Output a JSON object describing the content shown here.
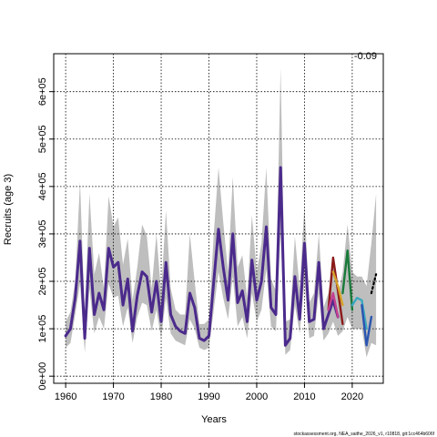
{
  "chart_data": {
    "type": "line",
    "xlabel": "Years",
    "ylabel": "Recruits (age 3)",
    "corner_value": "-0.09",
    "footer": "stockassessment.org, NEA_saithe_2026_v1, r10818, git:1cc464b606f",
    "xlim": [
      1957.5,
      2026.5
    ],
    "ylim": [
      -15000,
      680000
    ],
    "xticks": [
      1960,
      1970,
      1980,
      1990,
      2000,
      2010,
      2020
    ],
    "yticks": [
      0,
      100000,
      200000,
      300000,
      400000,
      500000,
      600000
    ],
    "ytick_labels": [
      "0e+00",
      "1e+05",
      "2e+05",
      "3e+05",
      "4e+05",
      "5e+05",
      "6e+05"
    ],
    "grid": true,
    "x": [
      1960,
      1961,
      1962,
      1963,
      1964,
      1965,
      1966,
      1967,
      1968,
      1969,
      1970,
      1971,
      1972,
      1973,
      1974,
      1975,
      1976,
      1977,
      1978,
      1979,
      1980,
      1981,
      1982,
      1983,
      1984,
      1985,
      1986,
      1987,
      1988,
      1989,
      1990,
      1991,
      1992,
      1993,
      1994,
      1995,
      1996,
      1997,
      1998,
      1999,
      2000,
      2001,
      2002,
      2003,
      2004,
      2005,
      2006,
      2007,
      2008,
      2009,
      2010,
      2011,
      2012,
      2013,
      2014,
      2015,
      2016,
      2017,
      2018,
      2019,
      2020,
      2021,
      2022,
      2023,
      2024,
      2025
    ],
    "series": [
      {
        "color": "#4b2a8c",
        "values": [
          85000,
          100000,
          165000,
          285000,
          80000,
          270000,
          130000,
          175000,
          140000,
          270000,
          230000,
          240000,
          150000,
          205000,
          95000,
          170000,
          220000,
          210000,
          135000,
          200000,
          115000,
          240000,
          130000,
          105000,
          95000,
          90000,
          175000,
          145000,
          80000,
          75000,
          85000,
          200000,
          310000,
          230000,
          160000,
          300000,
          155000,
          180000,
          115000,
          245000,
          160000,
          200000,
          315000,
          145000,
          130000,
          440000,
          65000,
          80000,
          210000,
          120000,
          280000,
          115000,
          120000,
          240000,
          100000,
          130000,
          160000,
          125000,
          null,
          null,
          null,
          null,
          null,
          null,
          null,
          null
        ]
      },
      {
        "color": "#8b1a1a",
        "values": [
          null,
          null,
          null,
          null,
          null,
          null,
          null,
          null,
          null,
          null,
          null,
          null,
          null,
          null,
          null,
          null,
          null,
          null,
          null,
          null,
          null,
          null,
          null,
          null,
          null,
          null,
          null,
          null,
          null,
          null,
          null,
          null,
          null,
          null,
          null,
          null,
          null,
          null,
          null,
          null,
          null,
          null,
          null,
          null,
          null,
          null,
          null,
          null,
          null,
          null,
          null,
          null,
          null,
          null,
          null,
          140000,
          250000,
          180000,
          110000,
          null,
          null,
          null,
          null,
          null,
          null,
          null
        ]
      },
      {
        "color": "#c4408f",
        "values": [
          null,
          null,
          null,
          null,
          null,
          null,
          null,
          null,
          null,
          null,
          null,
          null,
          null,
          null,
          null,
          null,
          null,
          null,
          null,
          null,
          null,
          null,
          null,
          null,
          null,
          null,
          null,
          null,
          null,
          null,
          null,
          null,
          null,
          null,
          null,
          null,
          null,
          null,
          null,
          null,
          null,
          null,
          null,
          null,
          null,
          null,
          null,
          null,
          null,
          null,
          null,
          null,
          null,
          null,
          null,
          140000,
          175000,
          125000,
          null,
          null,
          null,
          null,
          null,
          null,
          null,
          null
        ]
      },
      {
        "color": "#d6a32a",
        "values": [
          null,
          null,
          null,
          null,
          null,
          null,
          null,
          null,
          null,
          null,
          null,
          null,
          null,
          null,
          null,
          null,
          null,
          null,
          null,
          null,
          null,
          null,
          null,
          null,
          null,
          null,
          null,
          null,
          null,
          null,
          null,
          null,
          null,
          null,
          null,
          null,
          null,
          null,
          null,
          null,
          null,
          null,
          null,
          null,
          null,
          null,
          null,
          null,
          null,
          null,
          null,
          null,
          null,
          null,
          null,
          null,
          220000,
          190000,
          150000,
          null,
          null,
          null,
          null,
          null,
          null,
          null
        ]
      },
      {
        "color": "#1a7a3a",
        "values": [
          null,
          null,
          null,
          null,
          null,
          null,
          null,
          null,
          null,
          null,
          null,
          null,
          null,
          null,
          null,
          null,
          null,
          null,
          null,
          null,
          null,
          null,
          null,
          null,
          null,
          null,
          null,
          null,
          null,
          null,
          null,
          null,
          null,
          null,
          null,
          null,
          null,
          null,
          null,
          null,
          null,
          null,
          null,
          null,
          null,
          null,
          null,
          null,
          null,
          null,
          null,
          null,
          null,
          null,
          null,
          null,
          null,
          null,
          175000,
          265000,
          140000,
          null,
          null,
          null,
          null,
          null
        ]
      },
      {
        "color": "#3aa8c0",
        "values": [
          null,
          null,
          null,
          null,
          null,
          null,
          null,
          null,
          null,
          null,
          null,
          null,
          null,
          null,
          null,
          null,
          null,
          null,
          null,
          null,
          null,
          null,
          null,
          null,
          null,
          null,
          null,
          null,
          null,
          null,
          null,
          null,
          null,
          null,
          null,
          null,
          null,
          null,
          null,
          null,
          null,
          null,
          null,
          null,
          null,
          null,
          null,
          null,
          null,
          null,
          null,
          null,
          null,
          null,
          null,
          null,
          null,
          null,
          null,
          null,
          150000,
          165000,
          160000,
          100000,
          null,
          null
        ]
      },
      {
        "color": "#2a55b0",
        "values": [
          null,
          null,
          null,
          null,
          null,
          null,
          null,
          null,
          null,
          null,
          null,
          null,
          null,
          null,
          null,
          null,
          null,
          null,
          null,
          null,
          null,
          null,
          null,
          null,
          null,
          null,
          null,
          null,
          null,
          null,
          null,
          null,
          null,
          null,
          null,
          null,
          null,
          null,
          null,
          null,
          null,
          null,
          null,
          null,
          null,
          null,
          null,
          null,
          null,
          null,
          null,
          null,
          null,
          null,
          null,
          null,
          null,
          null,
          null,
          null,
          null,
          null,
          150000,
          65000,
          125000,
          null
        ]
      },
      {
        "color": "#000000",
        "dashed": true,
        "values": [
          null,
          null,
          null,
          null,
          null,
          null,
          null,
          null,
          null,
          null,
          null,
          null,
          null,
          null,
          null,
          null,
          null,
          null,
          null,
          null,
          null,
          null,
          null,
          null,
          null,
          null,
          null,
          null,
          null,
          null,
          null,
          null,
          null,
          null,
          null,
          null,
          null,
          null,
          null,
          null,
          null,
          null,
          null,
          null,
          null,
          null,
          null,
          null,
          null,
          null,
          null,
          null,
          null,
          null,
          null,
          null,
          null,
          null,
          null,
          null,
          null,
          null,
          null,
          null,
          175000,
          215000
        ]
      }
    ],
    "band": {
      "color": "#bebebe",
      "upper": [
        115000,
        135000,
        200000,
        410000,
        130000,
        385000,
        215000,
        260000,
        185000,
        380000,
        315000,
        335000,
        235000,
        290000,
        160000,
        230000,
        320000,
        295000,
        185000,
        300000,
        175000,
        350000,
        185000,
        140000,
        130000,
        130000,
        300000,
        200000,
        110000,
        110000,
        120000,
        300000,
        440000,
        325000,
        220000,
        420000,
        230000,
        255000,
        165000,
        340000,
        220000,
        280000,
        440000,
        205000,
        180000,
        650000,
        115000,
        120000,
        295000,
        185000,
        360000,
        155000,
        175000,
        300000,
        145000,
        175000,
        240000,
        170000,
        220000,
        320000,
        220000,
        210000,
        210000,
        190000,
        280000,
        385000
      ],
      "lower": [
        60000,
        70000,
        130000,
        195000,
        50000,
        185000,
        90000,
        125000,
        100000,
        195000,
        165000,
        170000,
        105000,
        145000,
        70000,
        125000,
        155000,
        150000,
        95000,
        140000,
        80000,
        165000,
        90000,
        75000,
        70000,
        65000,
        120000,
        100000,
        60000,
        55000,
        60000,
        140000,
        220000,
        165000,
        120000,
        210000,
        105000,
        125000,
        80000,
        175000,
        115000,
        140000,
        225000,
        105000,
        95000,
        300000,
        45000,
        55000,
        150000,
        90000,
        200000,
        80000,
        85000,
        175000,
        75000,
        90000,
        115000,
        85000,
        95000,
        125000,
        100000,
        100000,
        100000,
        40000,
        70000,
        65000
      ]
    }
  }
}
